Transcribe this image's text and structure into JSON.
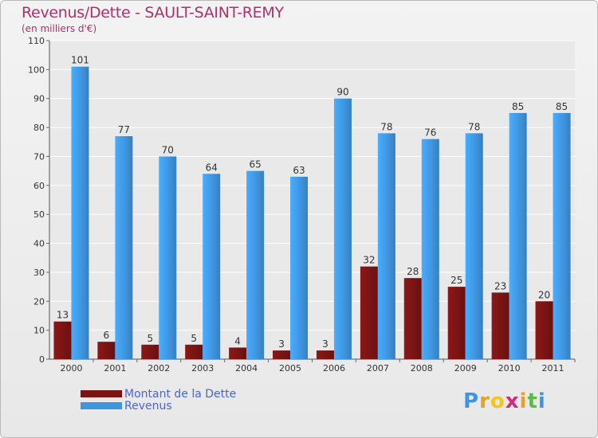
{
  "chart_data": {
    "type": "bar",
    "title": "Revenus/Dette - SAULT-SAINT-REMY",
    "subtitle": "(en milliers d'€)",
    "categories": [
      "2000",
      "2001",
      "2002",
      "2003",
      "2004",
      "2005",
      "2006",
      "2007",
      "2008",
      "2009",
      "2010",
      "2011"
    ],
    "series": [
      {
        "name": "Montant de la Dette",
        "color": "#7a1414",
        "values": [
          13,
          6,
          5,
          5,
          4,
          3,
          3,
          32,
          28,
          25,
          23,
          20
        ]
      },
      {
        "name": "Revenus",
        "color": "#3f96e0",
        "values": [
          101,
          77,
          70,
          64,
          65,
          63,
          90,
          78,
          76,
          78,
          85,
          85
        ]
      }
    ],
    "ylim": [
      0,
      110
    ],
    "yticks": [
      0,
      10,
      20,
      30,
      40,
      50,
      60,
      70,
      80,
      90,
      100,
      110
    ],
    "grid": true,
    "legend": "bottom-left"
  },
  "branding": {
    "letters": [
      "P",
      "r",
      "o",
      "x",
      "i",
      "t",
      "i"
    ],
    "colors": [
      "#3f96e0",
      "#e8a020",
      "#f5c518",
      "#d62a7a",
      "#e8a020",
      "#5fb84c",
      "#3f96e0"
    ]
  }
}
